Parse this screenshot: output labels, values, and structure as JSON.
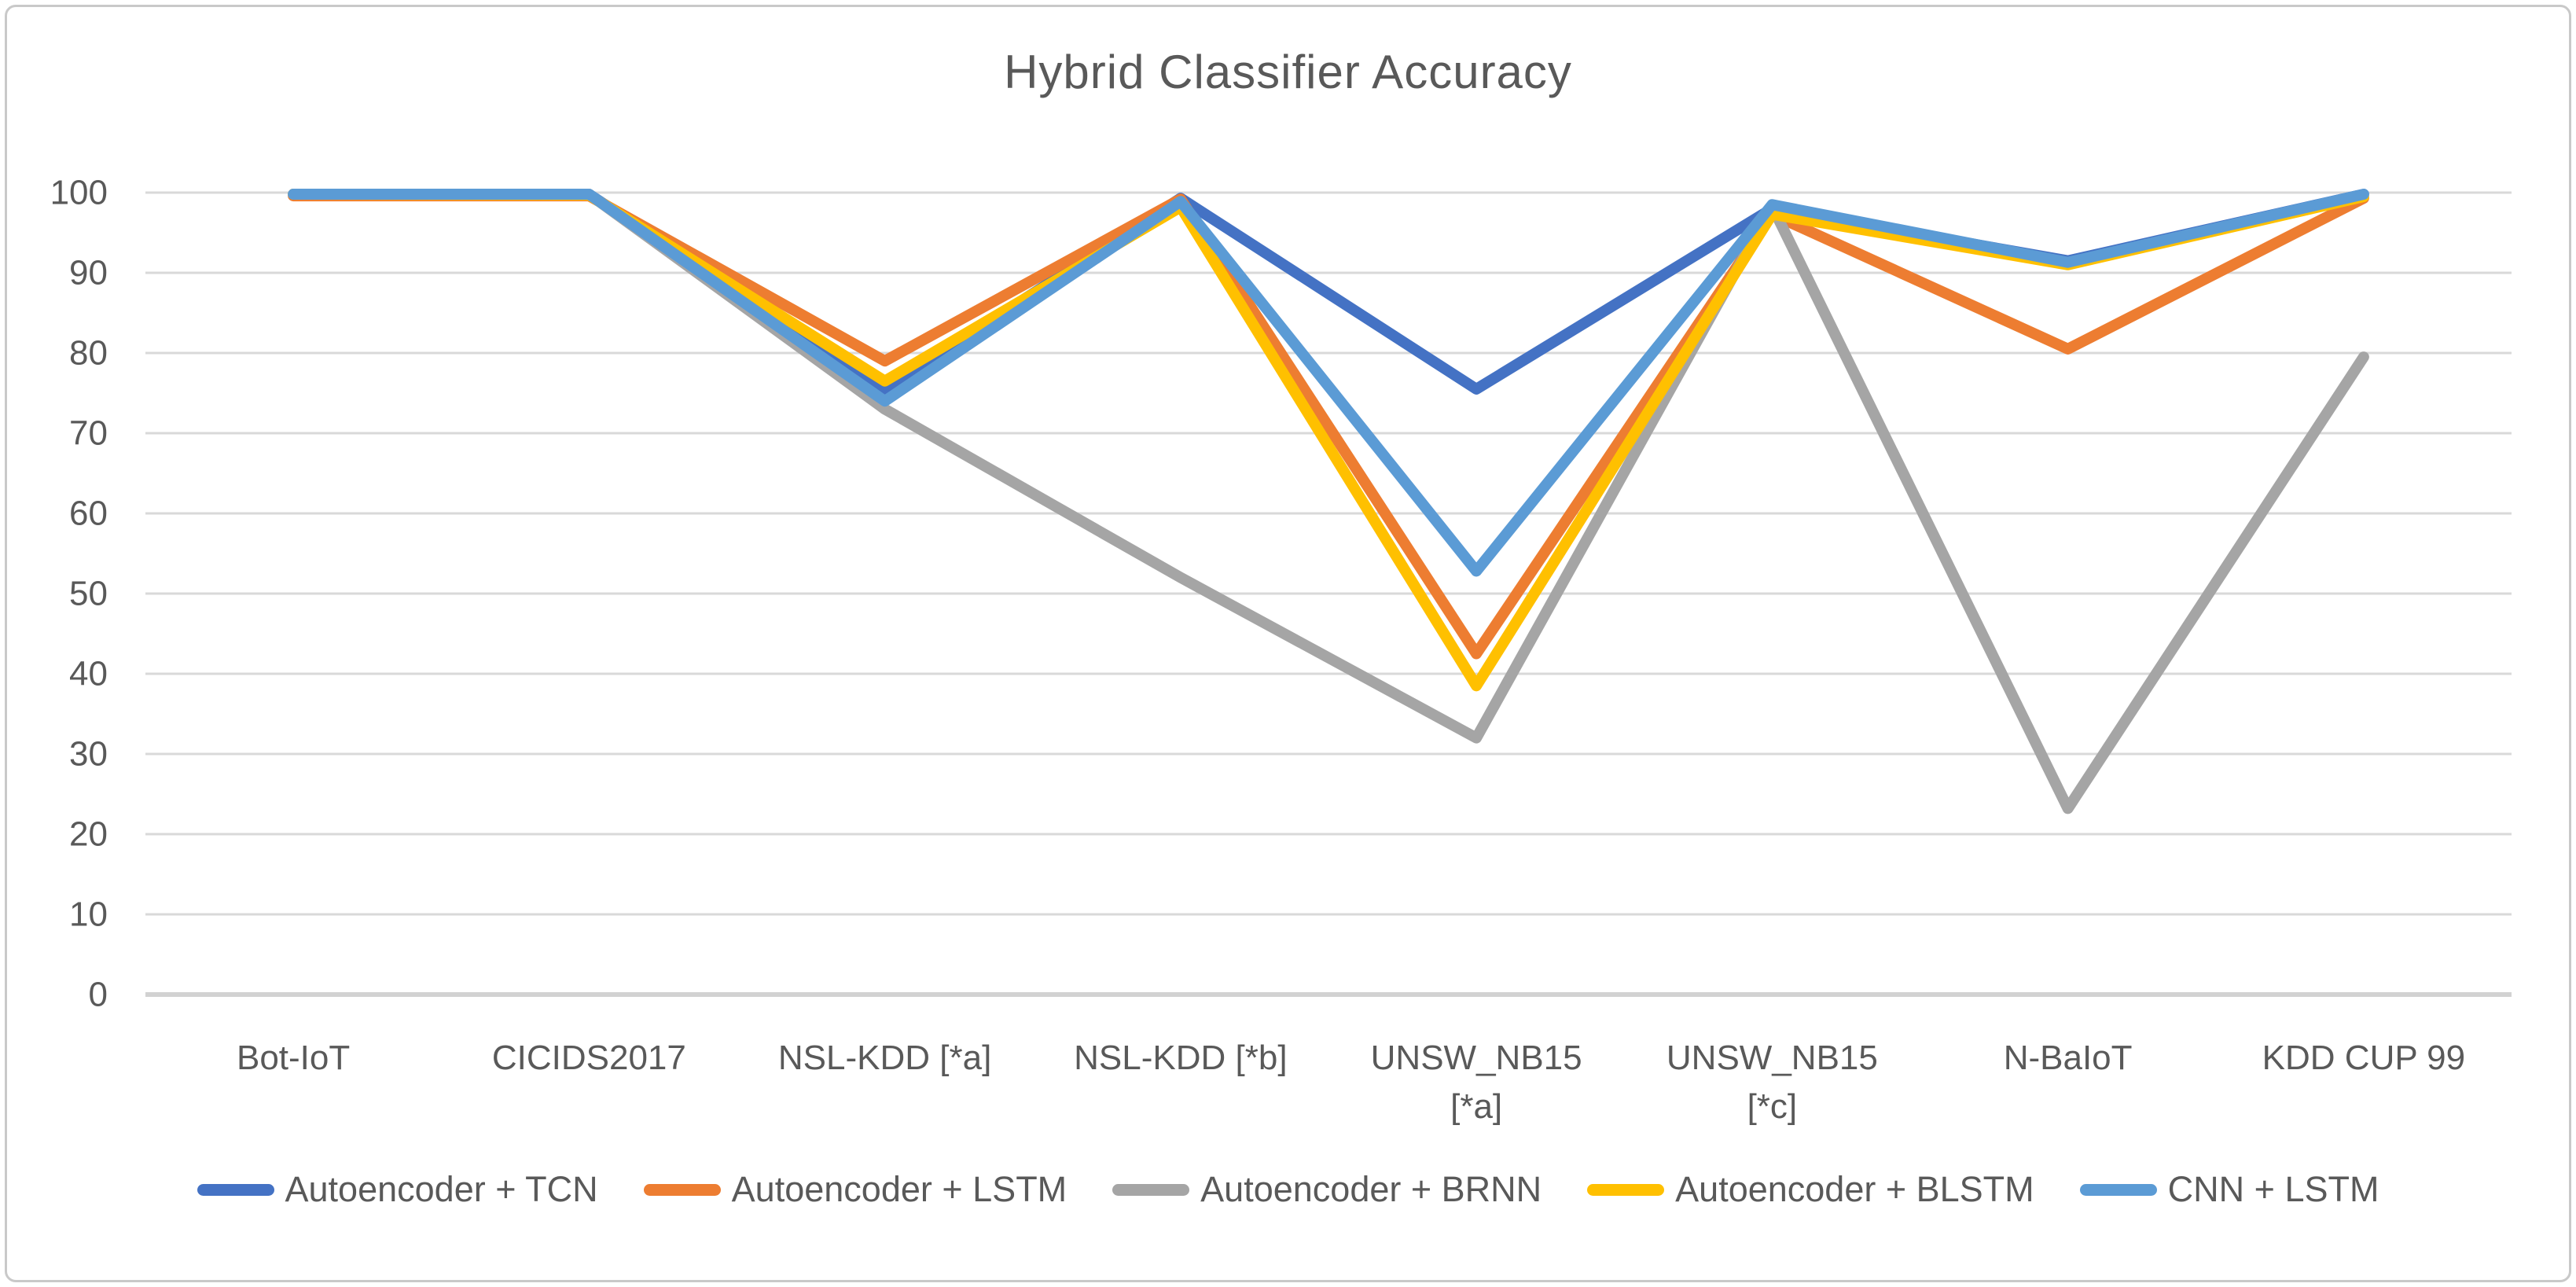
{
  "chart_data": {
    "type": "line",
    "title": "Hybrid Classifier Accuracy",
    "categories": [
      "Bot-IoT",
      "CICIDS2017",
      "NSL-KDD [*a]",
      "NSL-KDD [*b]",
      "UNSW_NB15\n[*a]",
      "UNSW_NB15\n[*c]",
      "N-BaIoT",
      "KDD CUP 99"
    ],
    "series": [
      {
        "name": "Autoencoder + TCN",
        "color": "#4472C4",
        "values": [
          99.8,
          99.8,
          75.5,
          99.3,
          75.5,
          98.0,
          91.5,
          99.8
        ]
      },
      {
        "name": "Autoencoder + LSTM",
        "color": "#ED7D31",
        "values": [
          99.6,
          99.6,
          79.0,
          99.2,
          42.5,
          97.3,
          80.5,
          99.3
        ]
      },
      {
        "name": "Autoencoder + BRNN",
        "color": "#A5A5A5",
        "values": [
          99.8,
          99.8,
          73.0,
          52.0,
          32.0,
          98.3,
          23.2,
          79.5
        ]
      },
      {
        "name": "Autoencoder + BLSTM",
        "color": "#FFC000",
        "values": [
          99.8,
          99.7,
          76.5,
          98.2,
          38.5,
          97.3,
          91.0,
          99.5
        ]
      },
      {
        "name": "CNN + LSTM",
        "color": "#5B9BD5",
        "values": [
          99.8,
          99.8,
          74.0,
          98.9,
          52.8,
          98.5,
          91.3,
          99.8
        ]
      }
    ],
    "xlabel": "",
    "ylabel": "",
    "ylim": [
      0,
      100
    ],
    "y_tick_step": 10,
    "y_tick_labels": [
      "0",
      "10",
      "20",
      "30",
      "40",
      "50",
      "60",
      "70",
      "80",
      "90",
      "100"
    ],
    "grid": "horizontal",
    "legend_position": "bottom",
    "gridline_color": "#D9D9D9",
    "axis_line_color": "#D2D2D2",
    "text_color": "#595959"
  }
}
